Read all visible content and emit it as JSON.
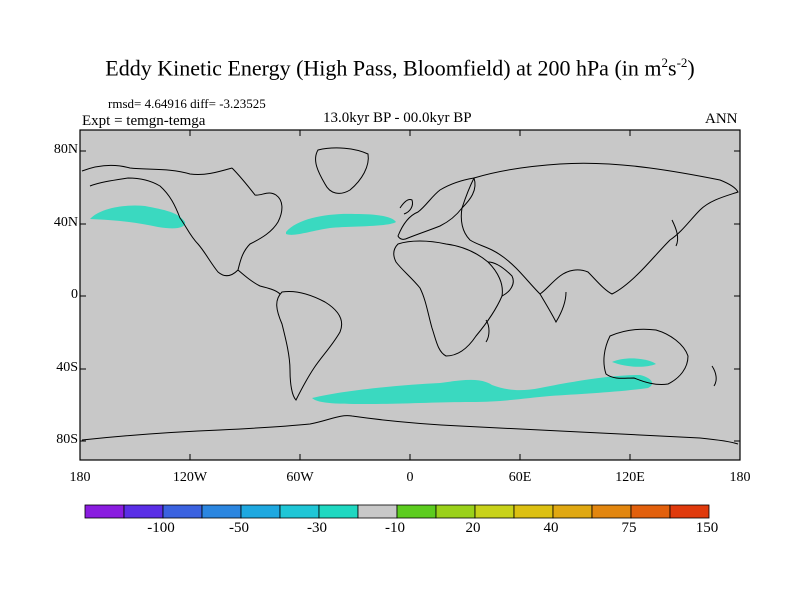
{
  "title": {
    "text": "Eddy Kinetic Energy (High Pass, Bloomfield) at 200 hPa (in m",
    "unit_exp1": "2",
    "unit_mid": "s",
    "unit_exp2": "-2",
    "close": ")"
  },
  "stats": "rmsd= 4.64916 diff= -3.23525",
  "expt": "Expt = temgn-temga",
  "period": "13.0kyr BP - 00.0kyr BP",
  "season": "ANN",
  "lat_labels": [
    "80N",
    "40N",
    "0",
    "40S",
    "80S"
  ],
  "lon_labels": [
    "180",
    "120W",
    "60W",
    "0",
    "60E",
    "120E",
    "180"
  ],
  "colors": {
    "land_bg": "#c8c8c8",
    "coast": "#000000",
    "anomaly_fill": "#3ad9c0"
  },
  "colorbar": {
    "labels": [
      "-100",
      "-50",
      "-30",
      "-10",
      "20",
      "40",
      "75",
      "150"
    ],
    "colors": [
      "#8a1ce0",
      "#5a2ee6",
      "#3b62e0",
      "#2b86e0",
      "#1ea8e0",
      "#1fc6d6",
      "#1fd8c1",
      "#c8c8c8",
      "#5ccc1f",
      "#9ad11a",
      "#c8d21a",
      "#dcc012",
      "#e0a812",
      "#e2860f",
      "#e2600c",
      "#e03a0c"
    ]
  }
}
